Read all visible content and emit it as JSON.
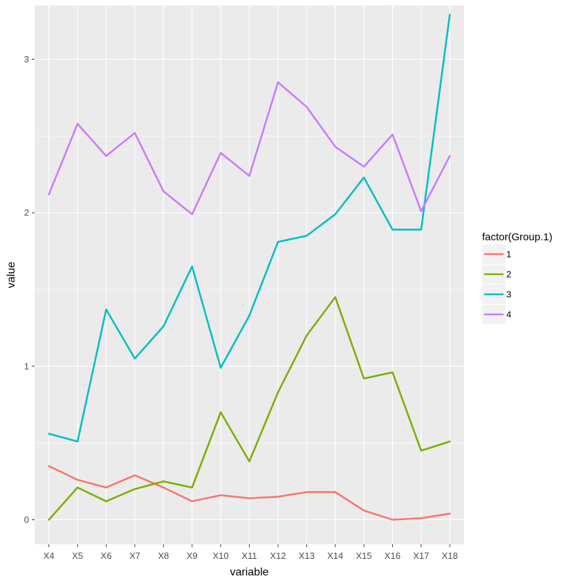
{
  "chart_data": {
    "type": "line",
    "xlabel": "variable",
    "ylabel": "value",
    "categories": [
      "X4",
      "X5",
      "X6",
      "X7",
      "X8",
      "X9",
      "X10",
      "X11",
      "X12",
      "X13",
      "X14",
      "X15",
      "X16",
      "X17",
      "X18"
    ],
    "ylim": [
      -0.16,
      3.35
    ],
    "yticks": [
      0,
      1,
      2,
      3
    ],
    "grid": true,
    "background": "#ebebeb",
    "grid_color": "#ffffff",
    "legend": {
      "title": "factor(Group.1)",
      "placement": "right"
    },
    "series": [
      {
        "name": "1",
        "color": "#f8766d",
        "values": [
          0.35,
          0.26,
          0.21,
          0.29,
          0.21,
          0.12,
          0.16,
          0.14,
          0.15,
          0.18,
          0.18,
          0.06,
          0.0,
          0.01,
          0.04
        ]
      },
      {
        "name": "2",
        "color": "#7cae00",
        "values": [
          0.0,
          0.21,
          0.12,
          0.2,
          0.25,
          0.21,
          0.7,
          0.38,
          0.83,
          1.2,
          1.45,
          0.92,
          0.96,
          0.45,
          0.51
        ]
      },
      {
        "name": "3",
        "color": "#00bfc4",
        "values": [
          0.56,
          0.51,
          1.37,
          1.05,
          1.26,
          1.65,
          0.99,
          1.33,
          1.81,
          1.85,
          1.99,
          2.23,
          1.89,
          1.89,
          3.29
        ]
      },
      {
        "name": "4",
        "color": "#c77cff",
        "values": [
          2.12,
          2.58,
          2.37,
          2.52,
          2.14,
          1.99,
          2.39,
          2.24,
          2.85,
          2.69,
          2.43,
          2.3,
          2.51,
          2.01,
          2.37
        ]
      }
    ]
  }
}
